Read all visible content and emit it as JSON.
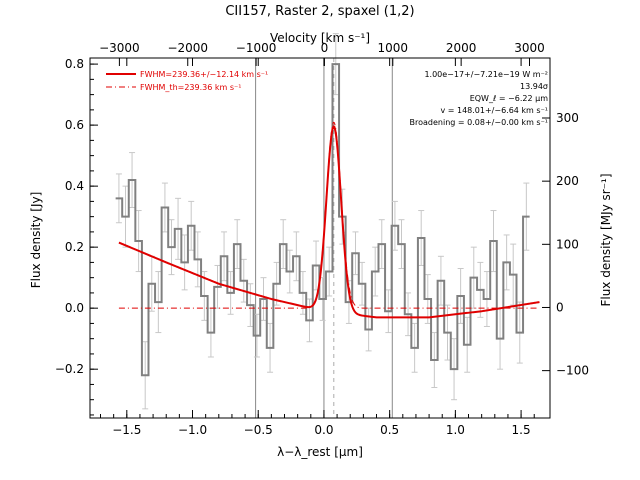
{
  "chart_data": {
    "type": "line",
    "title": "CII157, Raster 2, spaxel (1,2)",
    "xlabel": "λ−λ_rest [μm]",
    "ylabel": "Flux density [Jy]",
    "top_xlabel": "Velocity [km s⁻¹]",
    "right_ylabel": "Flux density [MJy sr⁻¹]",
    "xlim": [
      -1.78,
      1.72
    ],
    "ylim": [
      -0.36,
      0.82
    ],
    "top_xlim": [
      -3430,
      3300
    ],
    "right_ylim": [
      -175,
      395
    ],
    "x_ticks": [
      "−1.5",
      "−1.0",
      "−0.5",
      "0.0",
      "0.5",
      "1.0",
      "1.5"
    ],
    "y_ticks": [
      "−0.2",
      "0.0",
      "0.2",
      "0.4",
      "0.6",
      "0.8"
    ],
    "top_ticks": [
      "−3000",
      "−2000",
      "−1000",
      "0",
      "1000",
      "2000",
      "3000"
    ],
    "right_ticks": [
      "−100",
      "0",
      "100",
      "200",
      "300"
    ],
    "vlines_solid": [
      -0.52,
      0.0,
      0.52
    ],
    "vline_dashed": 0.075,
    "legend": {
      "placement": "top-left",
      "items": [
        "FWHM=239.36+/−12.14 km s⁻¹",
        "FWHM_th=239.36 km s⁻¹"
      ]
    },
    "annotations": [
      "1.00e−17+/−7.21e−19 W m⁻²",
      "13.94σ",
      "EQW_ℓ = −6.22 μm",
      "v = 148.01+/−6.64 km s⁻¹",
      "Broadening = 0.08+/−0.00 km s⁻¹"
    ],
    "colors": {
      "data": "#808080",
      "model": "#e00000",
      "axes": "#000000"
    },
    "series": [
      {
        "values_x": [
          -1.56,
          -1.51,
          -1.46,
          -1.41,
          -1.36,
          -1.31,
          -1.26,
          -1.21,
          -1.16,
          -1.11,
          -1.06,
          -1.01,
          -0.96,
          -0.91,
          -0.86,
          -0.81,
          -0.76,
          -0.71,
          -0.66,
          -0.61,
          -0.56,
          -0.51,
          -0.46,
          -0.41,
          -0.36,
          -0.31,
          -0.26,
          -0.21,
          -0.16,
          -0.11,
          -0.06,
          -0.01,
          0.04,
          0.09,
          0.14,
          0.19,
          0.24,
          0.29,
          0.34,
          0.39,
          0.44,
          0.49,
          0.54,
          0.59,
          0.64,
          0.69,
          0.74,
          0.79,
          0.84,
          0.89,
          0.94,
          0.99,
          1.04,
          1.09,
          1.14,
          1.19,
          1.24,
          1.29,
          1.34,
          1.39,
          1.44,
          1.49,
          1.54
        ],
        "values_y": [
          0.36,
          0.3,
          0.42,
          0.22,
          -0.22,
          0.08,
          0.02,
          0.33,
          0.2,
          0.26,
          0.15,
          0.27,
          0.16,
          0.04,
          -0.08,
          0.07,
          0.17,
          0.05,
          0.21,
          0.09,
          0.01,
          -0.09,
          0.03,
          -0.13,
          0.08,
          0.21,
          0.12,
          0.17,
          0.05,
          -0.04,
          0.14,
          0.03,
          0.12,
          0.8,
          0.3,
          0.02,
          0.18,
          0.08,
          -0.07,
          0.12,
          0.21,
          -0.01,
          0.27,
          0.21,
          -0.02,
          -0.13,
          0.23,
          0.03,
          -0.17,
          0.09,
          -0.08,
          -0.2,
          0.04,
          -0.12,
          0.1,
          0.06,
          0.03,
          0.22,
          -0.1,
          0.15,
          0.11,
          -0.08,
          0.3
        ],
        "errors": [
          0.08,
          0.1,
          0.09,
          0.1,
          0.11,
          0.09,
          0.1,
          0.08,
          0.09,
          0.1,
          0.09,
          0.08,
          0.09,
          0.08,
          0.08,
          0.07,
          0.08,
          0.07,
          0.08,
          0.07,
          0.07,
          0.07,
          0.07,
          0.08,
          0.07,
          0.08,
          0.07,
          0.08,
          0.07,
          0.07,
          0.08,
          0.07,
          0.08,
          0.1,
          0.09,
          0.07,
          0.07,
          0.07,
          0.07,
          0.08,
          0.08,
          0.07,
          0.08,
          0.08,
          0.07,
          0.08,
          0.09,
          0.08,
          0.09,
          0.08,
          0.09,
          0.1,
          0.09,
          0.09,
          0.1,
          0.09,
          0.09,
          0.1,
          0.1,
          0.09,
          0.1,
          0.1,
          0.11
        ]
      },
      {
        "model": {
          "baseline_x": [
            -1.56,
            -1.2,
            -0.8,
            -0.4,
            0.0,
            0.4,
            0.8,
            1.2,
            1.64
          ],
          "baseline_y": [
            0.215,
            0.15,
            0.08,
            0.03,
            -0.01,
            -0.03,
            -0.03,
            -0.01,
            0.02
          ],
          "gauss_center": 0.075,
          "gauss_peak": 0.61,
          "gauss_sigma": 0.056
        }
      }
    ]
  }
}
